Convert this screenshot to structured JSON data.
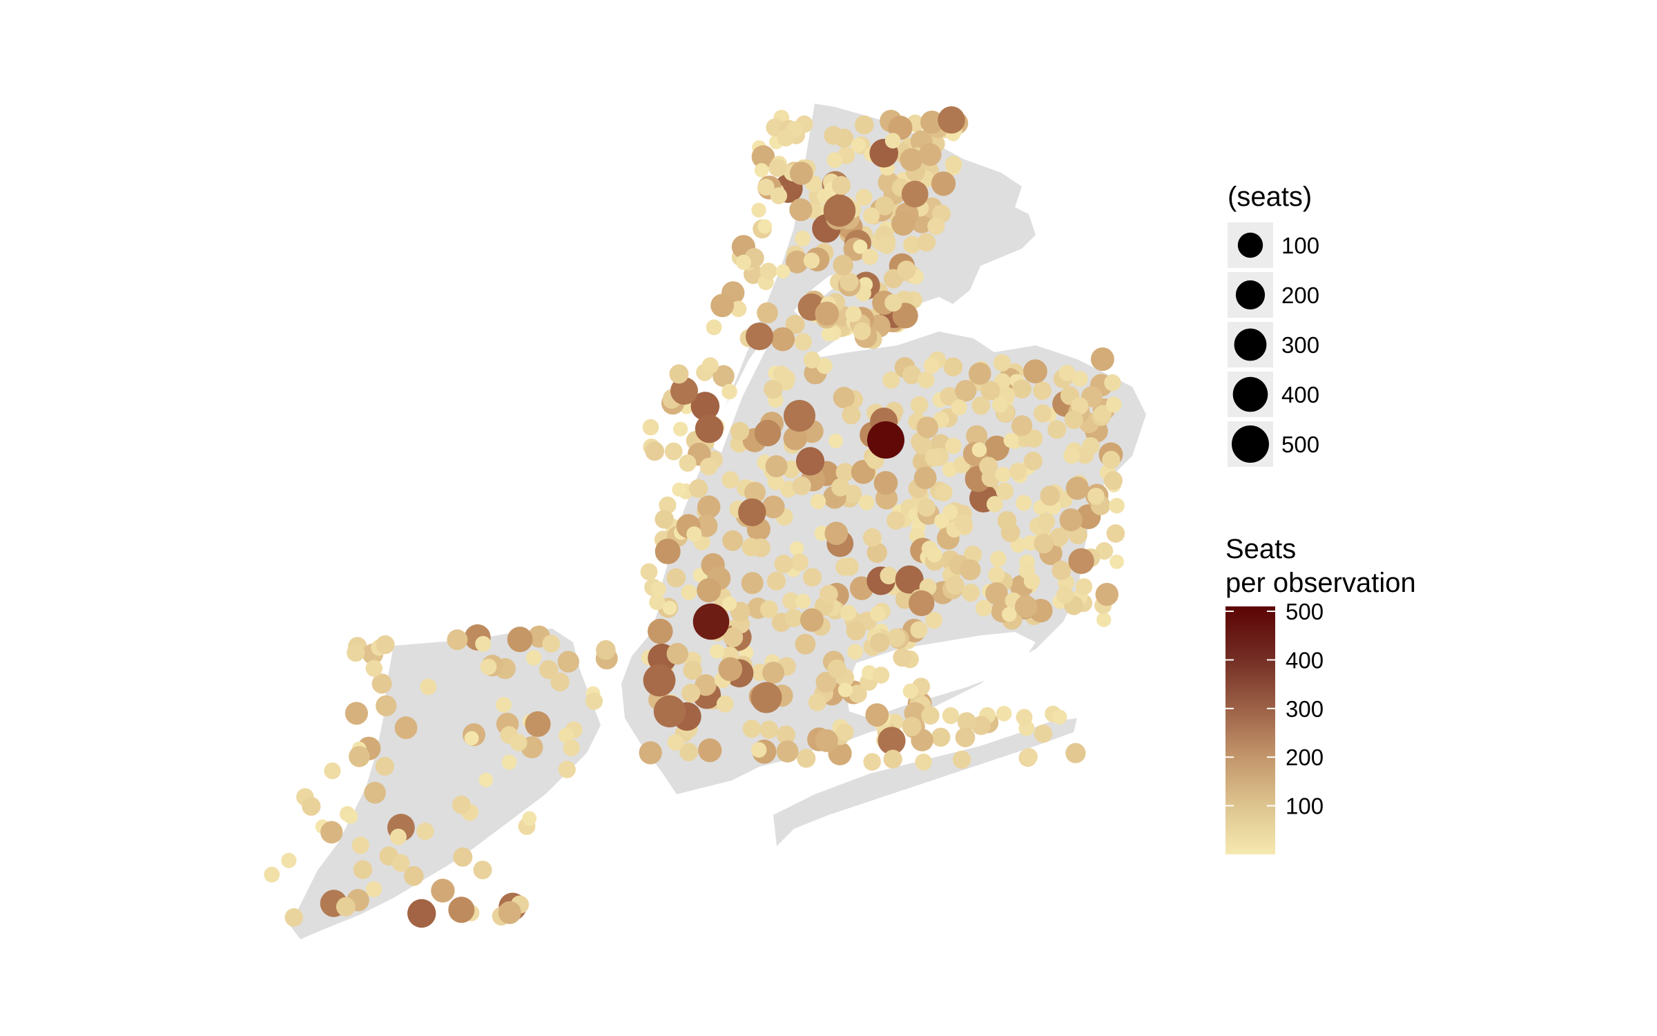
{
  "size_legend": {
    "title": "(seats)",
    "entries": [
      {
        "label": "100",
        "value": 100
      },
      {
        "label": "200",
        "value": 200
      },
      {
        "label": "300",
        "value": 300
      },
      {
        "label": "400",
        "value": 400
      },
      {
        "label": "500",
        "value": 500
      }
    ]
  },
  "color_legend": {
    "title_line1": "Seats",
    "title_line2": "per observation",
    "ticks": [
      {
        "label": "500",
        "value": 500
      },
      {
        "label": "400",
        "value": 400
      },
      {
        "label": "300",
        "value": 300
      },
      {
        "label": "200",
        "value": 200
      },
      {
        "label": "100",
        "value": 100
      }
    ],
    "min": 0,
    "max": 510
  },
  "colors": {
    "land": "#dedede",
    "low": "#f6e9b0",
    "mid": "#c99a68",
    "high": "#5c0404",
    "legend_key_bg": "#ececec",
    "size_key_fill": "#000000"
  }
}
